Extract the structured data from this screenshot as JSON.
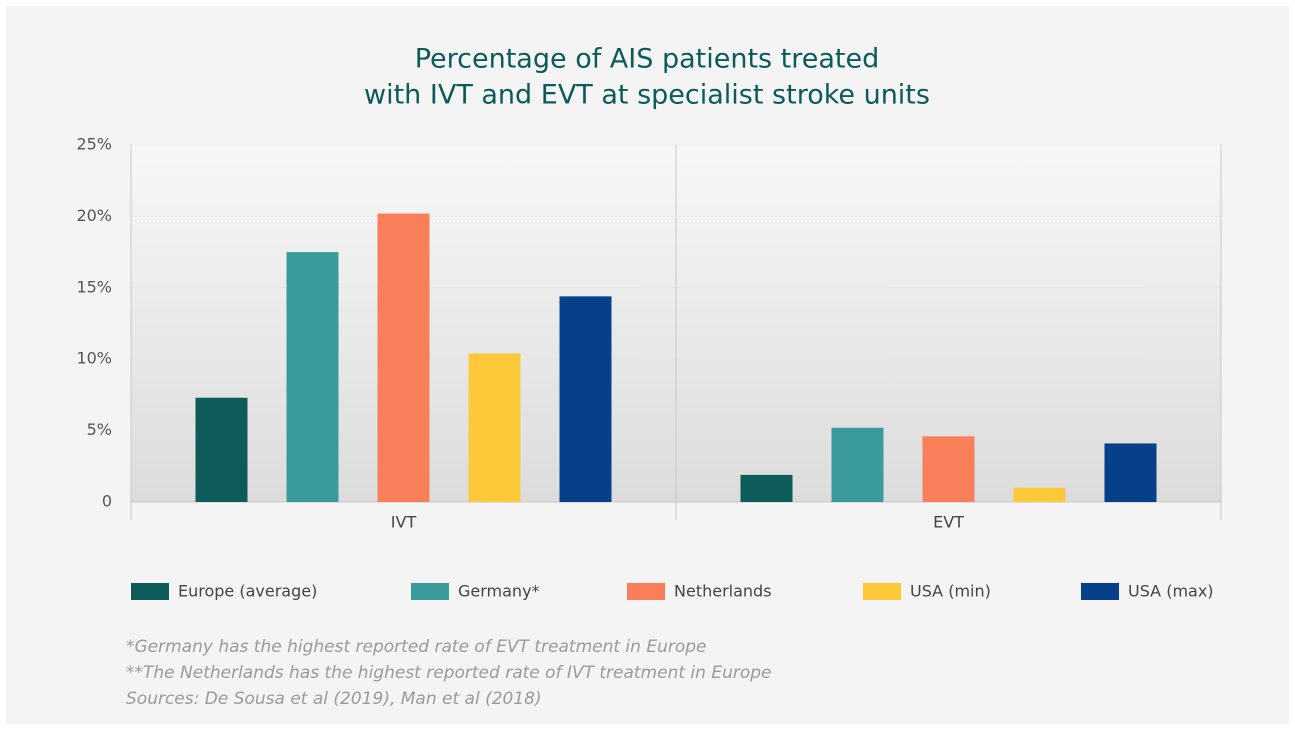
{
  "chart_data": {
    "type": "bar",
    "title": [
      "Percentage of AIS patients treated",
      "with IVT and EVT at specialist stroke units"
    ],
    "categories": [
      "IVT",
      "EVT"
    ],
    "series": [
      {
        "name": "Europe (average)",
        "color": "#0d5c5a",
        "values": [
          7.3,
          1.9
        ]
      },
      {
        "name": "Germany*",
        "color": "#3a9a9c",
        "values": [
          17.5,
          5.2
        ]
      },
      {
        "name": "Netherlands",
        "color": "#f97f5a",
        "values": [
          20.2,
          4.6
        ]
      },
      {
        "name": "USA (min)",
        "color": "#fdc93a",
        "values": [
          10.4,
          1.0
        ]
      },
      {
        "name": "USA (max)",
        "color": "#063f8a",
        "values": [
          14.4,
          4.1
        ]
      }
    ],
    "ylim": [
      0,
      25
    ],
    "yticks": [
      0,
      {
        "value": 5,
        "label": "5%"
      },
      {
        "value": 10,
        "label": "10%"
      },
      {
        "value": 15,
        "label": "15%"
      },
      {
        "value": 20,
        "label": "20%"
      },
      {
        "value": 25,
        "label": "25%"
      }
    ],
    "grid": true,
    "legend": "bottom",
    "notes": [
      "*Germany has the highest reported rate of EVT treatment in Europe",
      "**The Netherlands has the highest reported rate of IVT treatment in Europe",
      "Sources: De Sousa et al (2019), Man et al (2018)"
    ]
  }
}
